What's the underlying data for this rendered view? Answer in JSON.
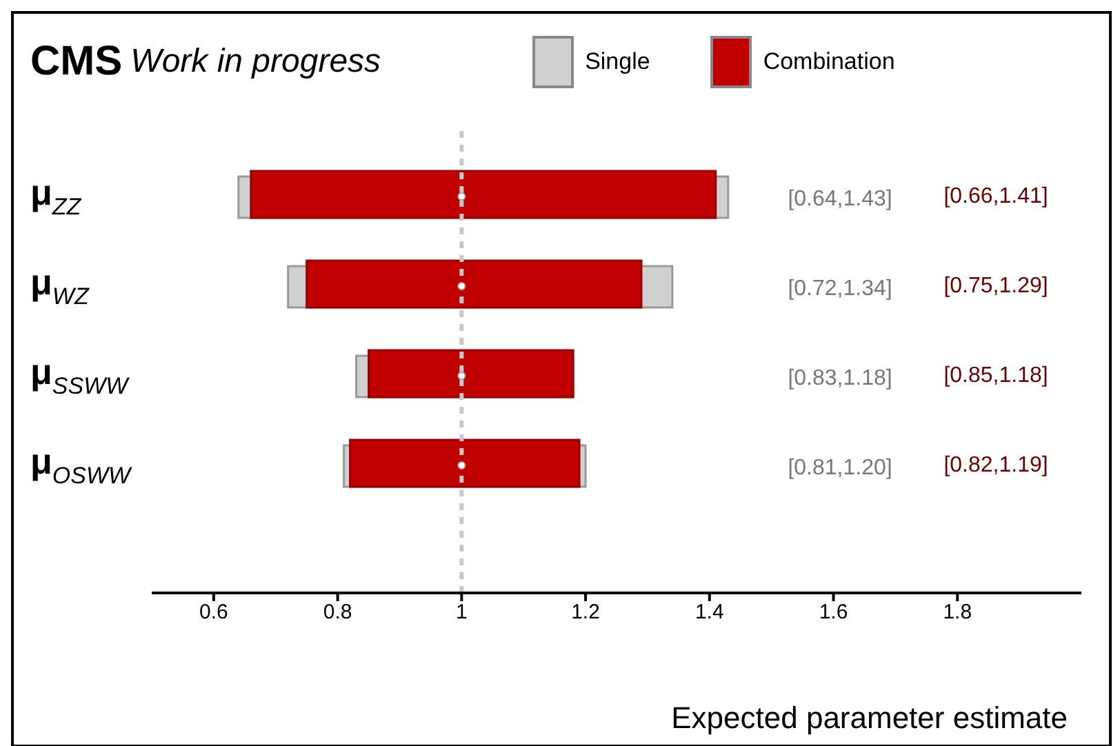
{
  "chart_data": {
    "type": "bar",
    "orientation": "horizontal",
    "title": "CMS",
    "subtitle": "Work in progress",
    "xlabel": "Expected parameter estimate",
    "categories": [
      "μ$_{ZZ}$",
      "μ$_{WZ}$",
      "μ$_{SSWW}$",
      "μ$_{OSWW}$"
    ],
    "series": [
      {
        "name": "Single",
        "color": "#d0d0d0",
        "base": [
          0.64,
          0.72,
          0.83,
          0.81
        ],
        "values": [
          0.79,
          0.62,
          0.35,
          0.39
        ],
        "value_labels": [
          "[0.64,1.43]",
          "[0.72,1.34]",
          "[0.83,1.18]",
          "[0.81,1.20]"
        ]
      },
      {
        "name": "Combination",
        "color": "#c00000",
        "base": [
          0.66,
          0.75,
          0.85,
          0.82
        ],
        "values": [
          0.75,
          0.54,
          0.33,
          0.37
        ],
        "value_labels": [
          "[0.66,1.41]",
          "[0.75,1.29]",
          "[0.85,1.18]",
          "[0.82,1.19]"
        ]
      },
      {
        "type": "scatter",
        "color": "#ffffff",
        "values": [
          1,
          1,
          1,
          1
        ]
      }
    ],
    "xlim": [
      0.5,
      2.0
    ],
    "xticks": [
      0.6,
      0.8,
      1,
      1.2,
      1.4,
      1.6,
      1.8
    ],
    "ref_lines": [
      {
        "axis": "x",
        "value": 1,
        "color": "#c8c8c8",
        "line_style": "dashed"
      }
    ],
    "legend": "top",
    "marker": "circle"
  }
}
